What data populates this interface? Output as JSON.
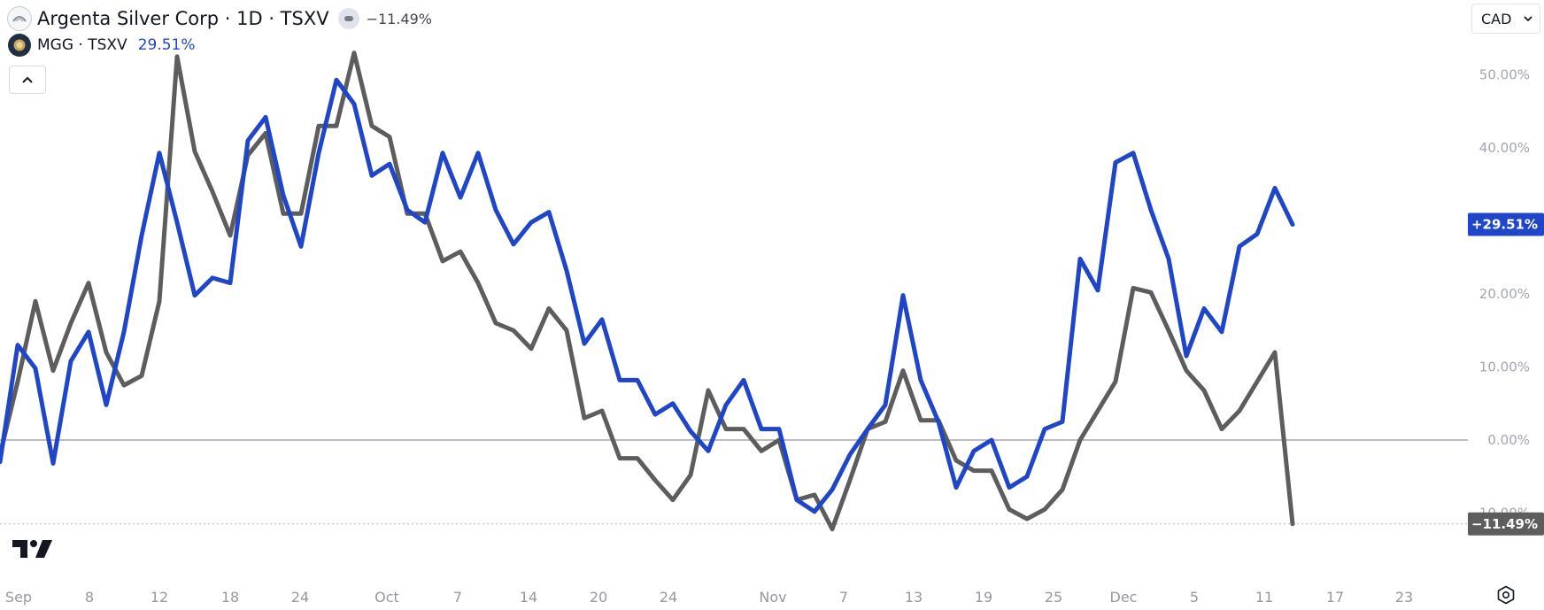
{
  "header": {
    "title": "Argenta Silver Corp · 1D · TSXV",
    "main_change": "−11.49%",
    "compare_title": "MGG · TSXV",
    "compare_change": "29.51%",
    "currency": "CAD"
  },
  "colors": {
    "main_series": "#5d5d5d",
    "compare_series": "#1f46c8",
    "zero_line": "#787b86",
    "axis_text": "#a3a6af"
  },
  "icons": {
    "main_symbol": "argenta-logo-icon",
    "compare_symbol": "mgg-logo-icon",
    "visibility": "eye-toggle-icon",
    "collapse": "chevron-up-icon",
    "currency_dropdown": "chevron-down-icon",
    "brand": "tradingview-logo-icon",
    "settings": "gear-icon"
  },
  "chart_data": {
    "type": "line",
    "x_ticks": [
      "Sep",
      "8",
      "12",
      "18",
      "24",
      "Oct",
      "7",
      "14",
      "20",
      "24",
      "Nov",
      "7",
      "13",
      "19",
      "25",
      "Dec",
      "5",
      "11",
      "17",
      "23"
    ],
    "y_ticks": [
      "50.00%",
      "40.00%",
      "20.00%",
      "10.00%",
      "0.00%",
      "-10.00%"
    ],
    "ylim": [
      -15,
      58
    ],
    "last_value_labels": {
      "compare": "+29.51%",
      "main": "−11.49%"
    },
    "series": [
      {
        "name": "Argenta Silver Corp",
        "values": [
          -2,
          8,
          19,
          9.5,
          16,
          21.5,
          12,
          7.5,
          8.8,
          19,
          52.5,
          39.5,
          34,
          28,
          39,
          42,
          31,
          31,
          43,
          43,
          53,
          43,
          41.5,
          31,
          31,
          24.5,
          25.8,
          21.5,
          16,
          15,
          12.5,
          18,
          15,
          3,
          4,
          -2.5,
          -2.5,
          -5.5,
          -8.2,
          -4.8,
          6.8,
          1.5,
          1.5,
          -1.5,
          0,
          -8.2,
          -7.5,
          -12.2,
          -5.5,
          1.5,
          2.5,
          9.5,
          2.7,
          2.7,
          -2.8,
          -4.2,
          -4.2,
          -9.5,
          -10.8,
          -9.5,
          -6.8,
          0,
          4,
          8,
          20.8,
          20.2,
          15,
          9.5,
          6.8,
          1.5,
          4,
          8,
          12,
          -11.49
        ]
      },
      {
        "name": "MGG",
        "values": [
          -3,
          13,
          9.8,
          -3.2,
          10.8,
          14.8,
          4.8,
          14.8,
          28,
          39.3,
          29.8,
          19.8,
          22.2,
          21.5,
          41,
          44.2,
          33.5,
          26.5,
          39.3,
          49.3,
          46,
          36.2,
          37.8,
          31.5,
          29.8,
          39.3,
          33.2,
          39.3,
          31.5,
          26.8,
          29.8,
          31.2,
          23.2,
          13.2,
          16.5,
          8.2,
          8.2,
          3.5,
          5,
          1.2,
          -1.5,
          4.8,
          8.2,
          1.5,
          1.5,
          -8.2,
          -9.8,
          -6.8,
          -2,
          1.5,
          4.8,
          19.8,
          8.2,
          2.5,
          -6.5,
          -1.5,
          0,
          -6.5,
          -5,
          1.5,
          2.5,
          24.8,
          20.5,
          38,
          39.3,
          31.5,
          24.8,
          11.5,
          18,
          14.8,
          26.5,
          28.2,
          34.5,
          29.51
        ]
      }
    ]
  }
}
